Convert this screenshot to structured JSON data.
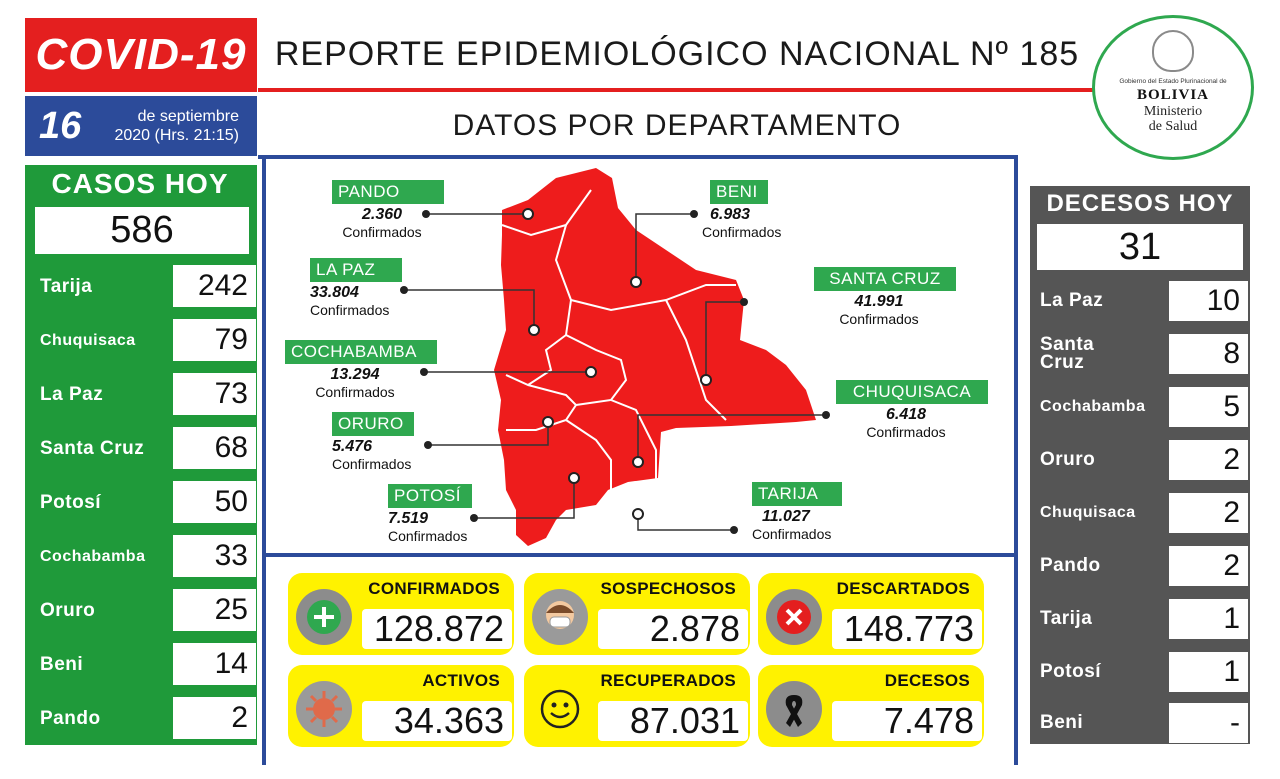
{
  "header": {
    "covid_label": "COVID-19",
    "report_title": "REPORTE EPIDEMIOLÓGICO NACIONAL Nº 185",
    "date_day": "16",
    "date_line1": "de septiembre",
    "date_line2": "2020 (Hrs. 21:15)",
    "subtitle": "DATOS POR DEPARTAMENTO",
    "emblem_gov": "Gobierno del Estado Plurinacional de",
    "emblem_country": "BOLIVIA",
    "emblem_ministry1": "Ministerio",
    "emblem_ministry2": "de Salud"
  },
  "casos_hoy": {
    "label": "CASOS HOY",
    "total": "586",
    "departments": [
      {
        "name": "Tarija",
        "value": "242"
      },
      {
        "name": "Chuquisaca",
        "value": "79"
      },
      {
        "name": "La Paz",
        "value": "73"
      },
      {
        "name": "Santa Cruz",
        "value": "68"
      },
      {
        "name": "Potosí",
        "value": "50"
      },
      {
        "name": "Cochabamba",
        "value": "33"
      },
      {
        "name": "Oruro",
        "value": "25"
      },
      {
        "name": "Beni",
        "value": "14"
      },
      {
        "name": "Pando",
        "value": "2"
      }
    ]
  },
  "decesos_hoy": {
    "label": "DECESOS HOY",
    "total": "31",
    "departments": [
      {
        "name": "La Paz",
        "value": "10"
      },
      {
        "name": "Santa Cruz",
        "value": "8"
      },
      {
        "name": "Cochabamba",
        "value": "5"
      },
      {
        "name": "Oruro",
        "value": "2"
      },
      {
        "name": "Chuquisaca",
        "value": "2"
      },
      {
        "name": "Pando",
        "value": "2"
      },
      {
        "name": "Tarija",
        "value": "1"
      },
      {
        "name": "Potosí",
        "value": "1"
      },
      {
        "name": "Beni",
        "value": "-"
      }
    ]
  },
  "map": {
    "confirmed_word": "Confirmados",
    "departments": {
      "pando": {
        "name": "PANDO",
        "value": "2.360"
      },
      "beni": {
        "name": "BENI",
        "value": "6.983"
      },
      "la_paz": {
        "name": "LA PAZ",
        "value": "33.804"
      },
      "santa_cruz": {
        "name": "SANTA CRUZ",
        "value": "41.991"
      },
      "cochabamba": {
        "name": "COCHABAMBA",
        "value": "13.294"
      },
      "chuquisaca": {
        "name": "CHUQUISACA",
        "value": "6.418"
      },
      "oruro": {
        "name": "ORURO",
        "value": "5.476"
      },
      "potosi": {
        "name": "POTOSÍ",
        "value": "7.519"
      },
      "tarija": {
        "name": "TARIJA",
        "value": "11.027"
      }
    }
  },
  "stats": {
    "confirmados": {
      "label": "CONFIRMADOS",
      "value": "128.872"
    },
    "sospechosos": {
      "label": "SOSPECHOSOS",
      "value": "2.878"
    },
    "descartados": {
      "label": "DESCARTADOS",
      "value": "148.773"
    },
    "activos": {
      "label": "ACTIVOS",
      "value": "34.363"
    },
    "recuperados": {
      "label": "RECUPERADOS",
      "value": "87.031"
    },
    "decesos": {
      "label": "DECESOS",
      "value": "7.478"
    }
  },
  "colors": {
    "red": "#e41f1f",
    "green": "#1f9a3a",
    "blue": "#2c4b9a",
    "gray": "#555555",
    "yellow": "#fff200"
  }
}
